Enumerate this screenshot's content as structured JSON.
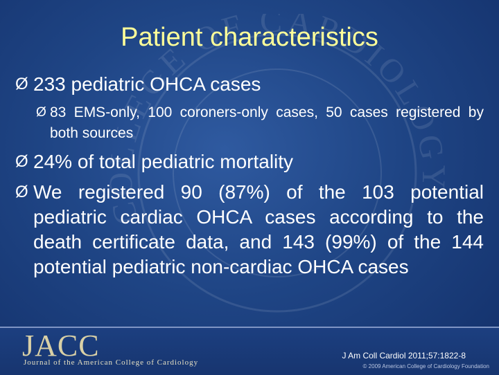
{
  "slide": {
    "title": "Patient characteristics",
    "bullets": [
      {
        "level": 1,
        "text": "233 pediatric OHCA cases"
      },
      {
        "level": 2,
        "text": "83 EMS-only, 100 coroners-only cases, 50 cases registered by both sources"
      },
      {
        "level": 1,
        "text": "24% of total pediatric mortality"
      },
      {
        "level": 1,
        "text": "We registered 90 (87%) of the 103 potential pediatric cardiac OHCA cases according to the death certificate data, and 143 (99%) of the 144 potential pediatric non-cardiac OHCA cases"
      }
    ],
    "bullet_glyph": "Ø",
    "watermark_text": "COLLEGE OF CARDIOLOGY"
  },
  "footer": {
    "logo": "JACC",
    "journal_name": "Journal of the American College of Cardiology",
    "citation": "J Am Coll Cardiol 2011;57:1822-8",
    "copyright": "© 2009 American College of Cardiology Foundation"
  },
  "colors": {
    "background": "#1f4585",
    "title": "#ffff99",
    "text": "#ffffff",
    "logo": "#d9d0a6"
  }
}
